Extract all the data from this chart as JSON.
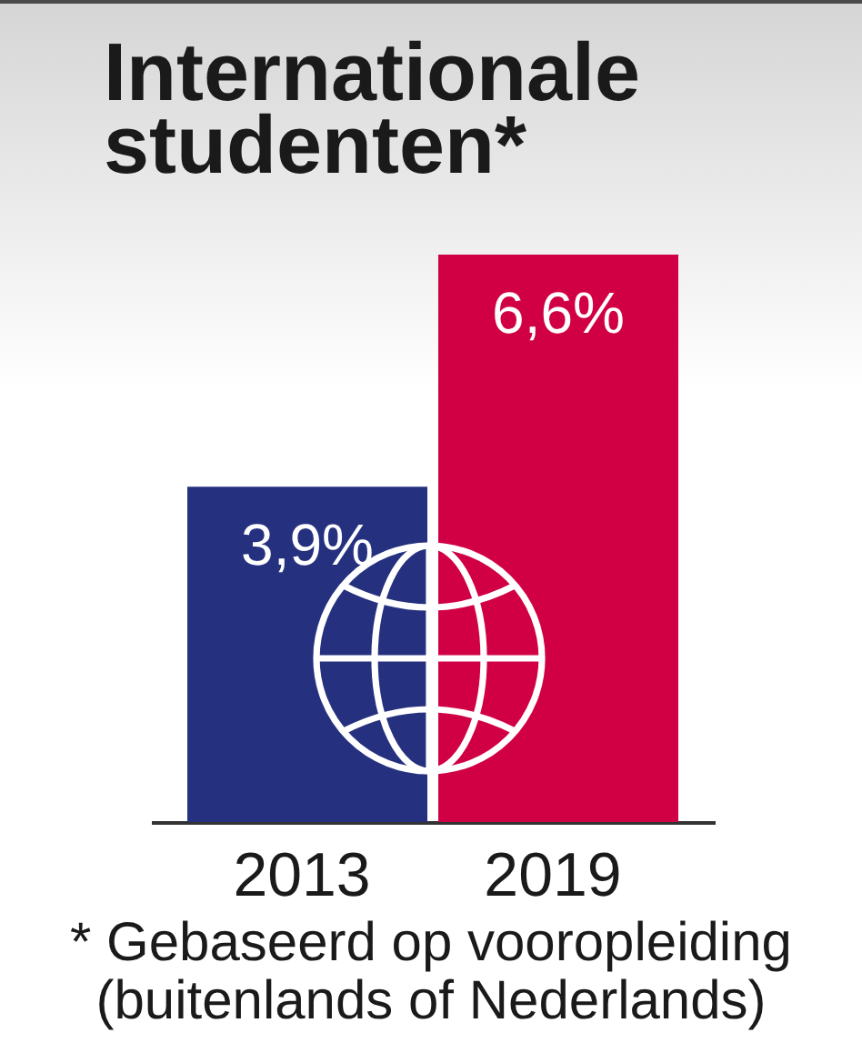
{
  "chart_data": {
    "type": "bar",
    "title": "Internationale studenten*",
    "categories": [
      "2013",
      "2019"
    ],
    "values": [
      3.9,
      6.6
    ],
    "colors": [
      "#25317f",
      "#d10045"
    ],
    "value_labels": [
      "3,9%",
      "6,6%"
    ],
    "tick_labels": "x",
    "annotations": [
      "* Gebaseerd op vooropleiding (buitenlands of Nederlands)"
    ]
  }
}
